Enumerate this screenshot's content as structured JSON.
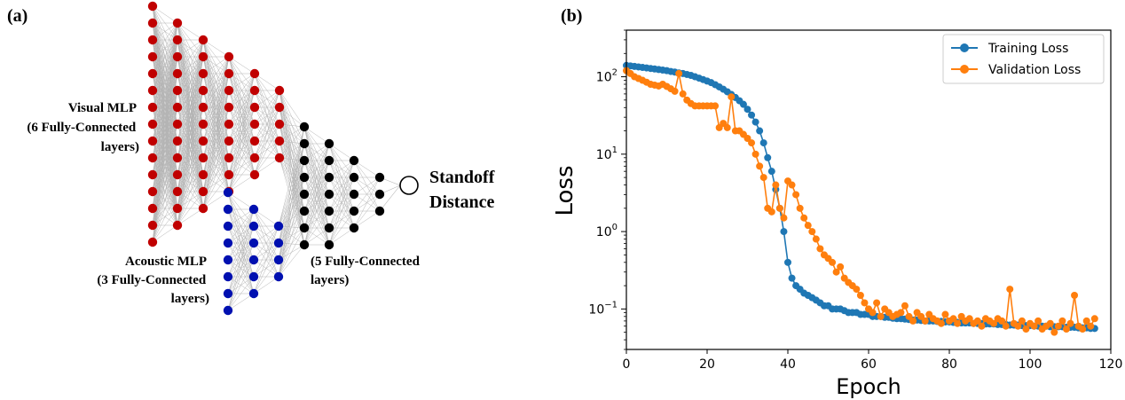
{
  "panel_a": {
    "label": "(a)",
    "visual_label": [
      "Visual MLP",
      "(6 Fully-Connected",
      "layers)"
    ],
    "acoustic_label": [
      "Acoustic MLP",
      "(3 Fully-Connected",
      "layers)"
    ],
    "fused_label": [
      "(5 Fully-Connected",
      "layers)"
    ],
    "output_label": [
      "Standoff",
      "Distance"
    ],
    "colors": {
      "visual": "#c00000",
      "acoustic": "#0010b0",
      "fused": "#000000",
      "edge": "#b4b4b4"
    },
    "layers": {
      "visual_node_counts": [
        15,
        13,
        11,
        9,
        7,
        5
      ],
      "acoustic_node_counts": [
        8,
        6,
        4
      ],
      "fused_node_counts": [
        8,
        7,
        5,
        3,
        1
      ]
    }
  },
  "panel_b": {
    "label": "(b)",
    "chart_data": {
      "type": "line",
      "xlabel": "Epoch",
      "ylabel": "Loss",
      "yscale": "log",
      "xlim": [
        0,
        120
      ],
      "ylim": [
        0.03,
        400
      ],
      "x_ticks": [
        0,
        20,
        40,
        60,
        80,
        100,
        120
      ],
      "y_ticks": [
        {
          "value": 0.1,
          "base": "10",
          "exp": "−1"
        },
        {
          "value": 1,
          "base": "10",
          "exp": "0"
        },
        {
          "value": 10,
          "base": "10",
          "exp": "1"
        },
        {
          "value": 100,
          "base": "10",
          "exp": "2"
        }
      ],
      "legend_position": "top-right",
      "series": [
        {
          "name": "Training Loss",
          "color": "#1f77b4",
          "values": [
            140,
            138,
            136,
            134,
            132,
            130,
            128,
            126,
            124,
            122,
            120,
            117,
            115,
            112,
            110,
            107,
            104,
            100,
            96,
            92,
            88,
            84,
            79,
            74,
            69,
            64,
            59,
            54,
            49,
            44,
            38,
            32,
            26,
            20,
            14,
            9,
            6,
            3.5,
            2,
            1,
            0.4,
            0.25,
            0.2,
            0.18,
            0.16,
            0.15,
            0.14,
            0.13,
            0.12,
            0.11,
            0.11,
            0.1,
            0.1,
            0.1,
            0.095,
            0.09,
            0.09,
            0.09,
            0.085,
            0.085,
            0.085,
            0.08,
            0.08,
            0.08,
            0.078,
            0.078,
            0.076,
            0.075,
            0.075,
            0.074,
            0.073,
            0.072,
            0.072,
            0.071,
            0.07,
            0.07,
            0.07,
            0.069,
            0.069,
            0.068,
            0.068,
            0.067,
            0.067,
            0.066,
            0.066,
            0.066,
            0.065,
            0.065,
            0.065,
            0.064,
            0.064,
            0.064,
            0.063,
            0.063,
            0.063,
            0.062,
            0.062,
            0.062,
            0.061,
            0.061,
            0.061,
            0.06,
            0.06,
            0.06,
            0.06,
            0.059,
            0.059,
            0.059,
            0.059,
            0.058,
            0.058,
            0.058,
            0.057,
            0.057,
            0.057,
            0.056,
            0.056
          ]
        },
        {
          "name": "Validation Loss",
          "color": "#ff7f0e",
          "values": [
            120,
            110,
            100,
            95,
            90,
            85,
            80,
            78,
            76,
            80,
            75,
            70,
            65,
            110,
            60,
            50,
            45,
            42,
            42,
            42,
            42,
            42,
            42,
            22,
            25,
            22,
            55,
            20,
            20,
            18,
            16,
            14,
            10,
            7,
            5,
            2,
            1.8,
            4,
            2,
            1.5,
            4.5,
            4,
            3,
            2,
            1.5,
            1.2,
            1,
            0.8,
            0.6,
            0.5,
            0.45,
            0.4,
            0.3,
            0.35,
            0.25,
            0.22,
            0.2,
            0.18,
            0.15,
            0.12,
            0.1,
            0.09,
            0.12,
            0.08,
            0.1,
            0.09,
            0.08,
            0.085,
            0.09,
            0.11,
            0.08,
            0.07,
            0.09,
            0.08,
            0.07,
            0.085,
            0.075,
            0.07,
            0.065,
            0.085,
            0.07,
            0.075,
            0.065,
            0.08,
            0.07,
            0.075,
            0.065,
            0.07,
            0.06,
            0.075,
            0.07,
            0.065,
            0.075,
            0.07,
            0.06,
            0.18,
            0.065,
            0.06,
            0.07,
            0.055,
            0.065,
            0.06,
            0.07,
            0.055,
            0.06,
            0.065,
            0.05,
            0.06,
            0.07,
            0.055,
            0.065,
            0.15,
            0.06,
            0.055,
            0.07,
            0.06,
            0.075
          ]
        }
      ]
    }
  }
}
